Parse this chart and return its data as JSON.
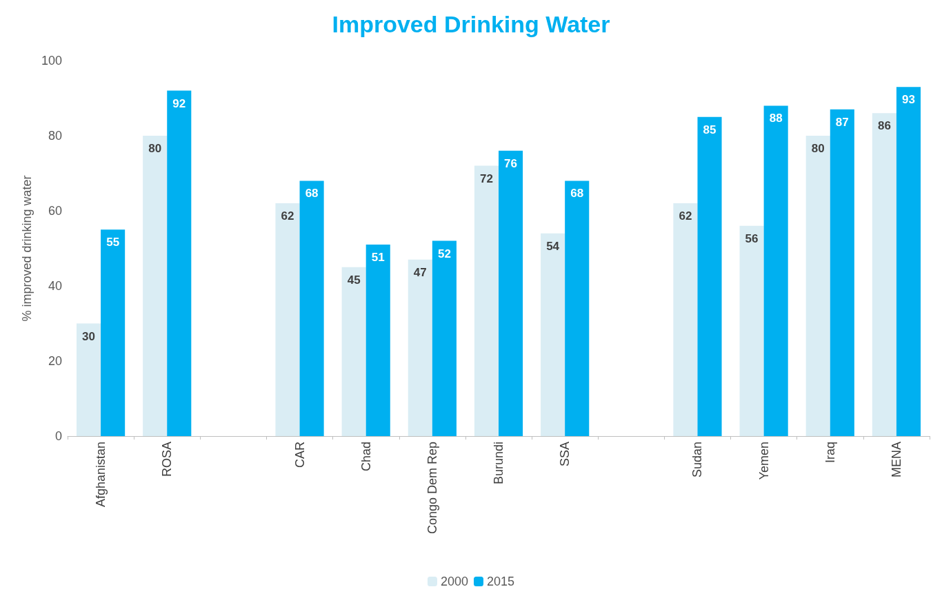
{
  "chart_data": {
    "type": "bar",
    "title": "Improved Drinking Water",
    "ylabel": "% improved drinking water",
    "categories": [
      "Afghanistan",
      "ROSA",
      null,
      "CAR",
      "Chad",
      "Congo Dem Rep",
      "Burundi",
      "SSA",
      null,
      "Sudan",
      "Yemen",
      "Iraq",
      "MENA"
    ],
    "series": [
      {
        "name": "2000",
        "color": "#daedf4",
        "values": [
          30,
          80,
          null,
          62,
          45,
          47,
          72,
          54,
          null,
          62,
          56,
          80,
          86
        ]
      },
      {
        "name": "2015",
        "color": "#00b0f0",
        "values": [
          55,
          92,
          null,
          68,
          51,
          52,
          76,
          68,
          null,
          85,
          88,
          87,
          93
        ]
      }
    ],
    "ylim": [
      0,
      100
    ],
    "yticks": [
      0,
      20,
      40,
      60,
      80,
      100
    ],
    "grid": false,
    "legend": "bottom",
    "data_labels": true
  }
}
